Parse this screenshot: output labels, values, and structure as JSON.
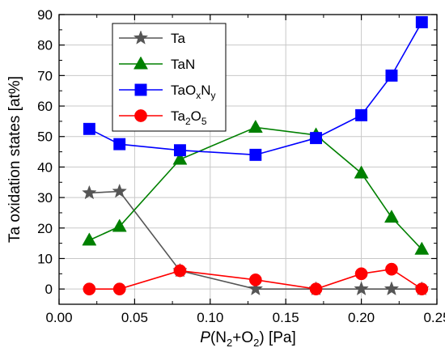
{
  "chart_data": {
    "type": "line",
    "xlabel": "P(N2+O2) [Pa]",
    "xlabel_parts": {
      "italic": "P",
      "open": "(N",
      "sub1": "2",
      "mid": "+O",
      "sub2": "2",
      "close": ") [Pa]"
    },
    "ylabel": "Ta oxidation states [at%]",
    "xlim": [
      0.0,
      0.25
    ],
    "ylim": [
      -5,
      90
    ],
    "xticks": [
      0.0,
      0.05,
      0.1,
      0.15,
      0.2,
      0.25
    ],
    "xtick_labels": [
      "0.00",
      "0.05",
      "0.10",
      "0.15",
      "0.20",
      "0.25"
    ],
    "yticks": [
      0,
      10,
      20,
      30,
      40,
      50,
      60,
      70,
      80,
      90
    ],
    "ytick_labels": [
      "0",
      "10",
      "20",
      "30",
      "40",
      "50",
      "60",
      "70",
      "80",
      "90"
    ],
    "grid": true,
    "legend_position": "top-left",
    "series": [
      {
        "name": "Ta",
        "legend": {
          "base": "Ta"
        },
        "marker": "star",
        "color": "#555555",
        "x": [
          0.02,
          0.04,
          0.08,
          0.13,
          0.17,
          0.2,
          0.22,
          0.24
        ],
        "y": [
          31.5,
          32.0,
          6.0,
          0.0,
          0.0,
          0.0,
          0.0,
          0.0
        ]
      },
      {
        "name": "TaN",
        "legend": {
          "base": "TaN"
        },
        "marker": "triangle",
        "color": "#008000",
        "x": [
          0.02,
          0.04,
          0.08,
          0.13,
          0.17,
          0.2,
          0.22,
          0.24
        ],
        "y": [
          16.0,
          20.5,
          42.5,
          53.0,
          50.5,
          38.0,
          23.5,
          13.0
        ]
      },
      {
        "name": "TaOxNy",
        "legend": {
          "base": "TaO",
          "sub1": "x",
          "mid": "N",
          "sub2": "y"
        },
        "marker": "square",
        "color": "#0000ff",
        "x": [
          0.02,
          0.04,
          0.08,
          0.13,
          0.17,
          0.2,
          0.22,
          0.24
        ],
        "y": [
          52.5,
          47.5,
          45.5,
          44.0,
          49.5,
          57.0,
          70.0,
          87.5
        ]
      },
      {
        "name": "Ta2O5",
        "legend": {
          "base": "Ta",
          "sub1": "2",
          "mid": "O",
          "sub2": "5"
        },
        "marker": "circle",
        "color": "#ff0000",
        "x": [
          0.02,
          0.04,
          0.08,
          0.13,
          0.17,
          0.2,
          0.22,
          0.24
        ],
        "y": [
          0.0,
          0.0,
          6.0,
          3.0,
          0.0,
          5.0,
          6.5,
          0.0
        ]
      }
    ]
  }
}
